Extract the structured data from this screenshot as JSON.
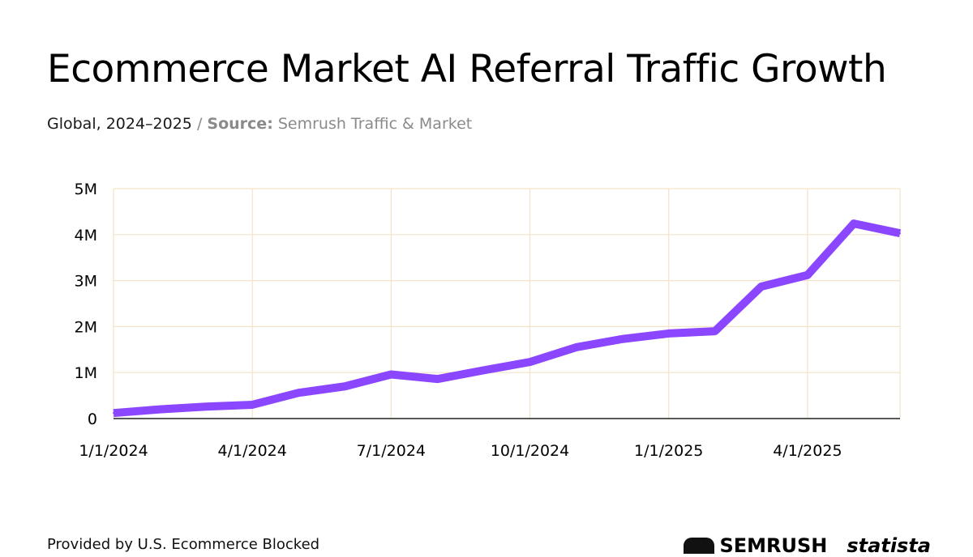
{
  "header": {
    "title": "Ecommerce Market AI Referral Traffic Growth",
    "subtitle_scope": "Global, 2024–2025",
    "subtitle_sep": "/",
    "source_label": "Source:",
    "source_value": "Semrush Traffic & Market"
  },
  "colors": {
    "line": "#8B46FF",
    "grid": "#F3E3C8",
    "axis": "#222222",
    "text": "#000000"
  },
  "chart_data": {
    "type": "line",
    "title": "Ecommerce Market AI Referral Traffic Growth",
    "xlabel": "",
    "ylabel": "",
    "x": [
      "1/1/2024",
      "2/1/2024",
      "3/1/2024",
      "4/1/2024",
      "5/1/2024",
      "6/1/2024",
      "7/1/2024",
      "8/1/2024",
      "9/1/2024",
      "10/1/2024",
      "11/1/2024",
      "12/1/2024",
      "1/1/2025",
      "2/1/2025",
      "3/1/2025",
      "4/1/2025",
      "5/1/2025",
      "6/1/2025"
    ],
    "series": [
      {
        "name": "AI referral traffic",
        "values": [
          0.12,
          0.2,
          0.26,
          0.3,
          0.56,
          0.7,
          0.96,
          0.86,
          1.05,
          1.23,
          1.55,
          1.73,
          1.85,
          1.9,
          2.87,
          3.12,
          4.24,
          4.03
        ]
      }
    ],
    "x_ticks": [
      "1/1/2024",
      "4/1/2024",
      "7/1/2024",
      "10/1/2024",
      "1/1/2025",
      "4/1/2025"
    ],
    "y_ticks": [
      {
        "value": 0,
        "label": "0"
      },
      {
        "value": 1,
        "label": "1M"
      },
      {
        "value": 2,
        "label": "2M"
      },
      {
        "value": 3,
        "label": "3M"
      },
      {
        "value": 4,
        "label": "4M"
      },
      {
        "value": 5,
        "label": "5M"
      }
    ],
    "ylim": [
      0,
      5
    ],
    "y_unit": "millions",
    "grid": true
  },
  "footer": {
    "caption": "Provided by U.S. Ecommerce Blocked",
    "logo_semrush": "SEMRUSH",
    "logo_statista": "statista"
  }
}
